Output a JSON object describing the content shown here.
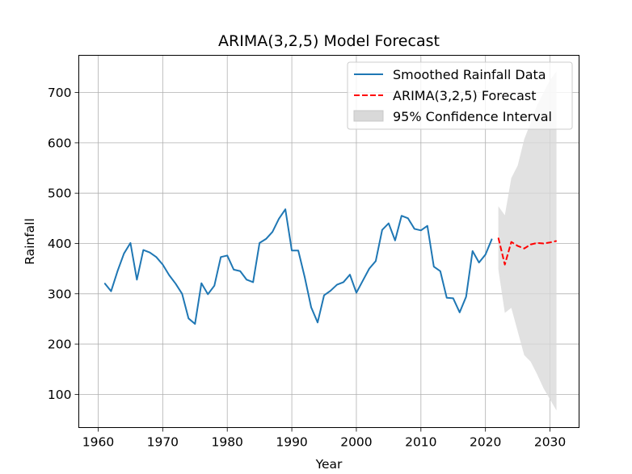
{
  "chart_data": {
    "type": "line",
    "title": "ARIMA(3,2,5) Model Forecast",
    "xlabel": "Year",
    "ylabel": "Rainfall",
    "xlim": [
      1957,
      2034.5
    ],
    "ylim": [
      34,
      774
    ],
    "x_ticks": [
      1960,
      1970,
      1980,
      1990,
      2000,
      2010,
      2020,
      2030
    ],
    "y_ticks": [
      100,
      200,
      300,
      400,
      500,
      600,
      700
    ],
    "grid": true,
    "legend_position": "top-right",
    "series": [
      {
        "name": "Smoothed Rainfall Data",
        "style": "solid",
        "color": "#1f77b4",
        "x": [
          1961,
          1962,
          1963,
          1964,
          1965,
          1966,
          1967,
          1968,
          1969,
          1970,
          1971,
          1972,
          1973,
          1974,
          1975,
          1976,
          1977,
          1978,
          1979,
          1980,
          1981,
          1982,
          1983,
          1984,
          1985,
          1986,
          1987,
          1988,
          1989,
          1990,
          1991,
          1992,
          1993,
          1994,
          1995,
          1996,
          1997,
          1998,
          1999,
          2000,
          2001,
          2002,
          2003,
          2004,
          2005,
          2006,
          2007,
          2008,
          2009,
          2010,
          2011,
          2012,
          2013,
          2014,
          2015,
          2016,
          2017,
          2018,
          2019,
          2020,
          2021
        ],
        "y": [
          321,
          305,
          345,
          380,
          401,
          328,
          387,
          382,
          373,
          358,
          337,
          320,
          300,
          251,
          240,
          321,
          299,
          316,
          373,
          376,
          348,
          345,
          328,
          323,
          401,
          409,
          423,
          449,
          468,
          386,
          386,
          333,
          273,
          243,
          297,
          306,
          318,
          323,
          338,
          302,
          326,
          350,
          365,
          427,
          440,
          406,
          455,
          450,
          429,
          426,
          435,
          354,
          345,
          292,
          291,
          263,
          294,
          385,
          362,
          378,
          409
        ]
      },
      {
        "name": "ARIMA(3,2,5) Forecast",
        "style": "dashed",
        "color": "#ff0000",
        "x": [
          2022,
          2023,
          2024,
          2025,
          2026,
          2027,
          2028,
          2029,
          2030,
          2031
        ],
        "y": [
          411,
          358,
          403,
          395,
          390,
          398,
          401,
          400,
          402,
          405
        ]
      }
    ],
    "confidence_interval": {
      "name": "95% Confidence Interval",
      "color": "#d9d9d9",
      "x": [
        2022,
        2023,
        2024,
        2025,
        2026,
        2027,
        2028,
        2029,
        2030,
        2031
      ],
      "lower": [
        348,
        262,
        272,
        225,
        178,
        165,
        140,
        112,
        90,
        68
      ],
      "upper": [
        474,
        456,
        530,
        555,
        607,
        640,
        675,
        700,
        725,
        742
      ]
    }
  }
}
